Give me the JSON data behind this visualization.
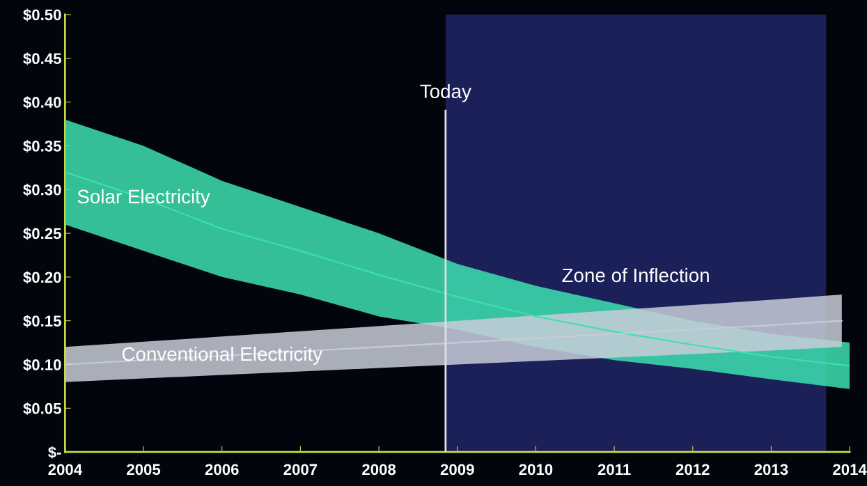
{
  "chart_data": {
    "type": "line",
    "x": [
      2004,
      2005,
      2006,
      2007,
      2008,
      2009,
      2010,
      2011,
      2012,
      2013,
      2014
    ],
    "series": [
      {
        "name": "Solar Electricity",
        "color": "#3de0b0",
        "values": [
          0.32,
          0.29,
          0.255,
          0.23,
          0.2025,
          0.1775,
          0.155,
          0.1375,
          0.1225,
          0.109,
          0.0985
        ],
        "upper": [
          0.38,
          0.35,
          0.31,
          0.28,
          0.25,
          0.215,
          0.19,
          0.17,
          0.15,
          0.135,
          0.125
        ],
        "lower": [
          0.26,
          0.23,
          0.2,
          0.18,
          0.155,
          0.14,
          0.12,
          0.105,
          0.095,
          0.083,
          0.072
        ]
      },
      {
        "name": "Conventional Electricity",
        "color": "#c8ccd8",
        "x": [
          2004,
          2005,
          2006,
          2007,
          2008,
          2009,
          2010,
          2011,
          2012,
          2013,
          2013.9
        ],
        "values": [
          0.1,
          0.105,
          0.11,
          0.115,
          0.12,
          0.125,
          0.13,
          0.135,
          0.14,
          0.145,
          0.15
        ],
        "upper": [
          0.12,
          0.126,
          0.132,
          0.138,
          0.144,
          0.15,
          0.156,
          0.162,
          0.168,
          0.174,
          0.18
        ],
        "lower": [
          0.08,
          0.084,
          0.088,
          0.092,
          0.096,
          0.1,
          0.104,
          0.108,
          0.112,
          0.116,
          0.12
        ]
      }
    ],
    "xlim": [
      2004,
      2014
    ],
    "xticks": [
      2004,
      2005,
      2006,
      2007,
      2008,
      2009,
      2010,
      2011,
      2012,
      2013,
      2014
    ],
    "ylim": [
      0,
      0.5
    ],
    "yticks": [
      {
        "value": 0,
        "label": "$-"
      },
      {
        "value": 0.05,
        "label": "$0.05"
      },
      {
        "value": 0.1,
        "label": "$0.10"
      },
      {
        "value": 0.15,
        "label": "$0.15"
      },
      {
        "value": 0.2,
        "label": "$0.20"
      },
      {
        "value": 0.25,
        "label": "$0.25"
      },
      {
        "value": 0.3,
        "label": "$0.30"
      },
      {
        "value": 0.35,
        "label": "$0.35"
      },
      {
        "value": 0.4,
        "label": "$0.40"
      },
      {
        "value": 0.45,
        "label": "$0.45"
      },
      {
        "value": 0.5,
        "label": "$0.50"
      }
    ],
    "ref_lines": [
      {
        "axis": "x",
        "value": 2008.85,
        "label": "Today",
        "color": "#e0e0e0"
      }
    ],
    "bands": [
      {
        "axis": "x",
        "from": 2008.85,
        "to": 2013.7,
        "label": "Zone of Inflection",
        "color": "#1e2460"
      }
    ],
    "grid": false,
    "legend": false
  }
}
